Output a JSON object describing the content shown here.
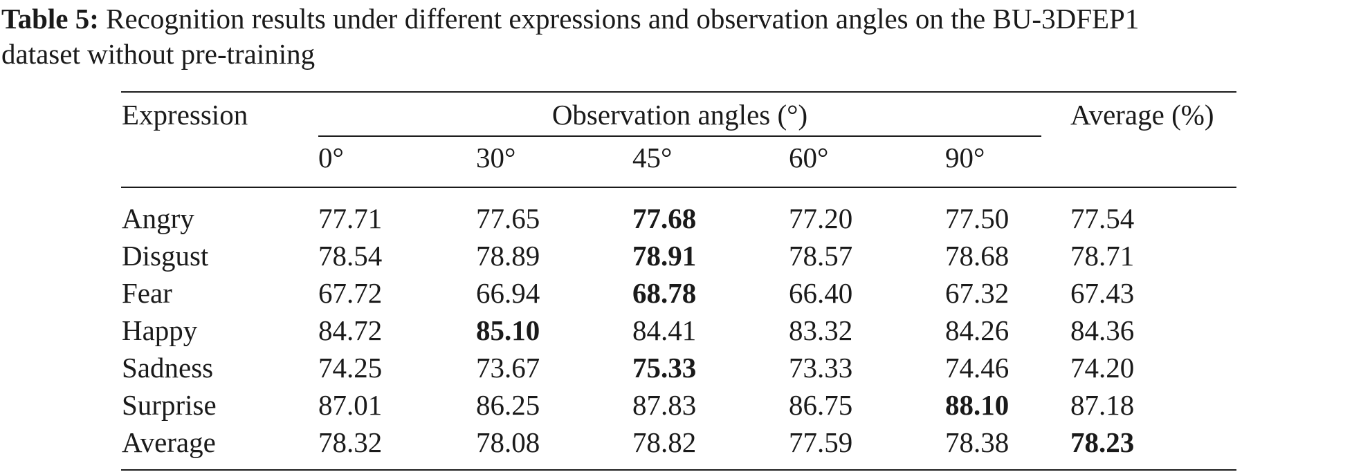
{
  "caption": {
    "label": "Table 5:",
    "line1": "Recognition results under different expressions and observation angles on the BU-3DFEP1",
    "line2": "dataset without pre-training"
  },
  "table": {
    "header": {
      "expression": "Expression",
      "group": "Observation angles (°)",
      "average": "Average (%)",
      "angles": [
        "0°",
        "30°",
        "45°",
        "60°",
        "90°"
      ]
    },
    "rows": [
      {
        "label": "Angry",
        "values": [
          "77.71",
          "77.65",
          "77.68",
          "77.20",
          "77.50"
        ],
        "average": "77.54",
        "bold_col": 2
      },
      {
        "label": "Disgust",
        "values": [
          "78.54",
          "78.89",
          "78.91",
          "78.57",
          "78.68"
        ],
        "average": "78.71",
        "bold_col": 2
      },
      {
        "label": "Fear",
        "values": [
          "67.72",
          "66.94",
          "68.78",
          "66.40",
          "67.32"
        ],
        "average": "67.43",
        "bold_col": 2
      },
      {
        "label": "Happy",
        "values": [
          "84.72",
          "85.10",
          "84.41",
          "83.32",
          "84.26"
        ],
        "average": "84.36",
        "bold_col": 1
      },
      {
        "label": "Sadness",
        "values": [
          "74.25",
          "73.67",
          "75.33",
          "73.33",
          "74.46"
        ],
        "average": "74.20",
        "bold_col": 2
      },
      {
        "label": "Surprise",
        "values": [
          "87.01",
          "86.25",
          "87.83",
          "86.75",
          "88.10"
        ],
        "average": "87.18",
        "bold_col": 4
      },
      {
        "label": "Average",
        "values": [
          "78.32",
          "78.08",
          "78.82",
          "77.59",
          "78.38"
        ],
        "average": "78.23",
        "bold_col": 5
      }
    ]
  }
}
